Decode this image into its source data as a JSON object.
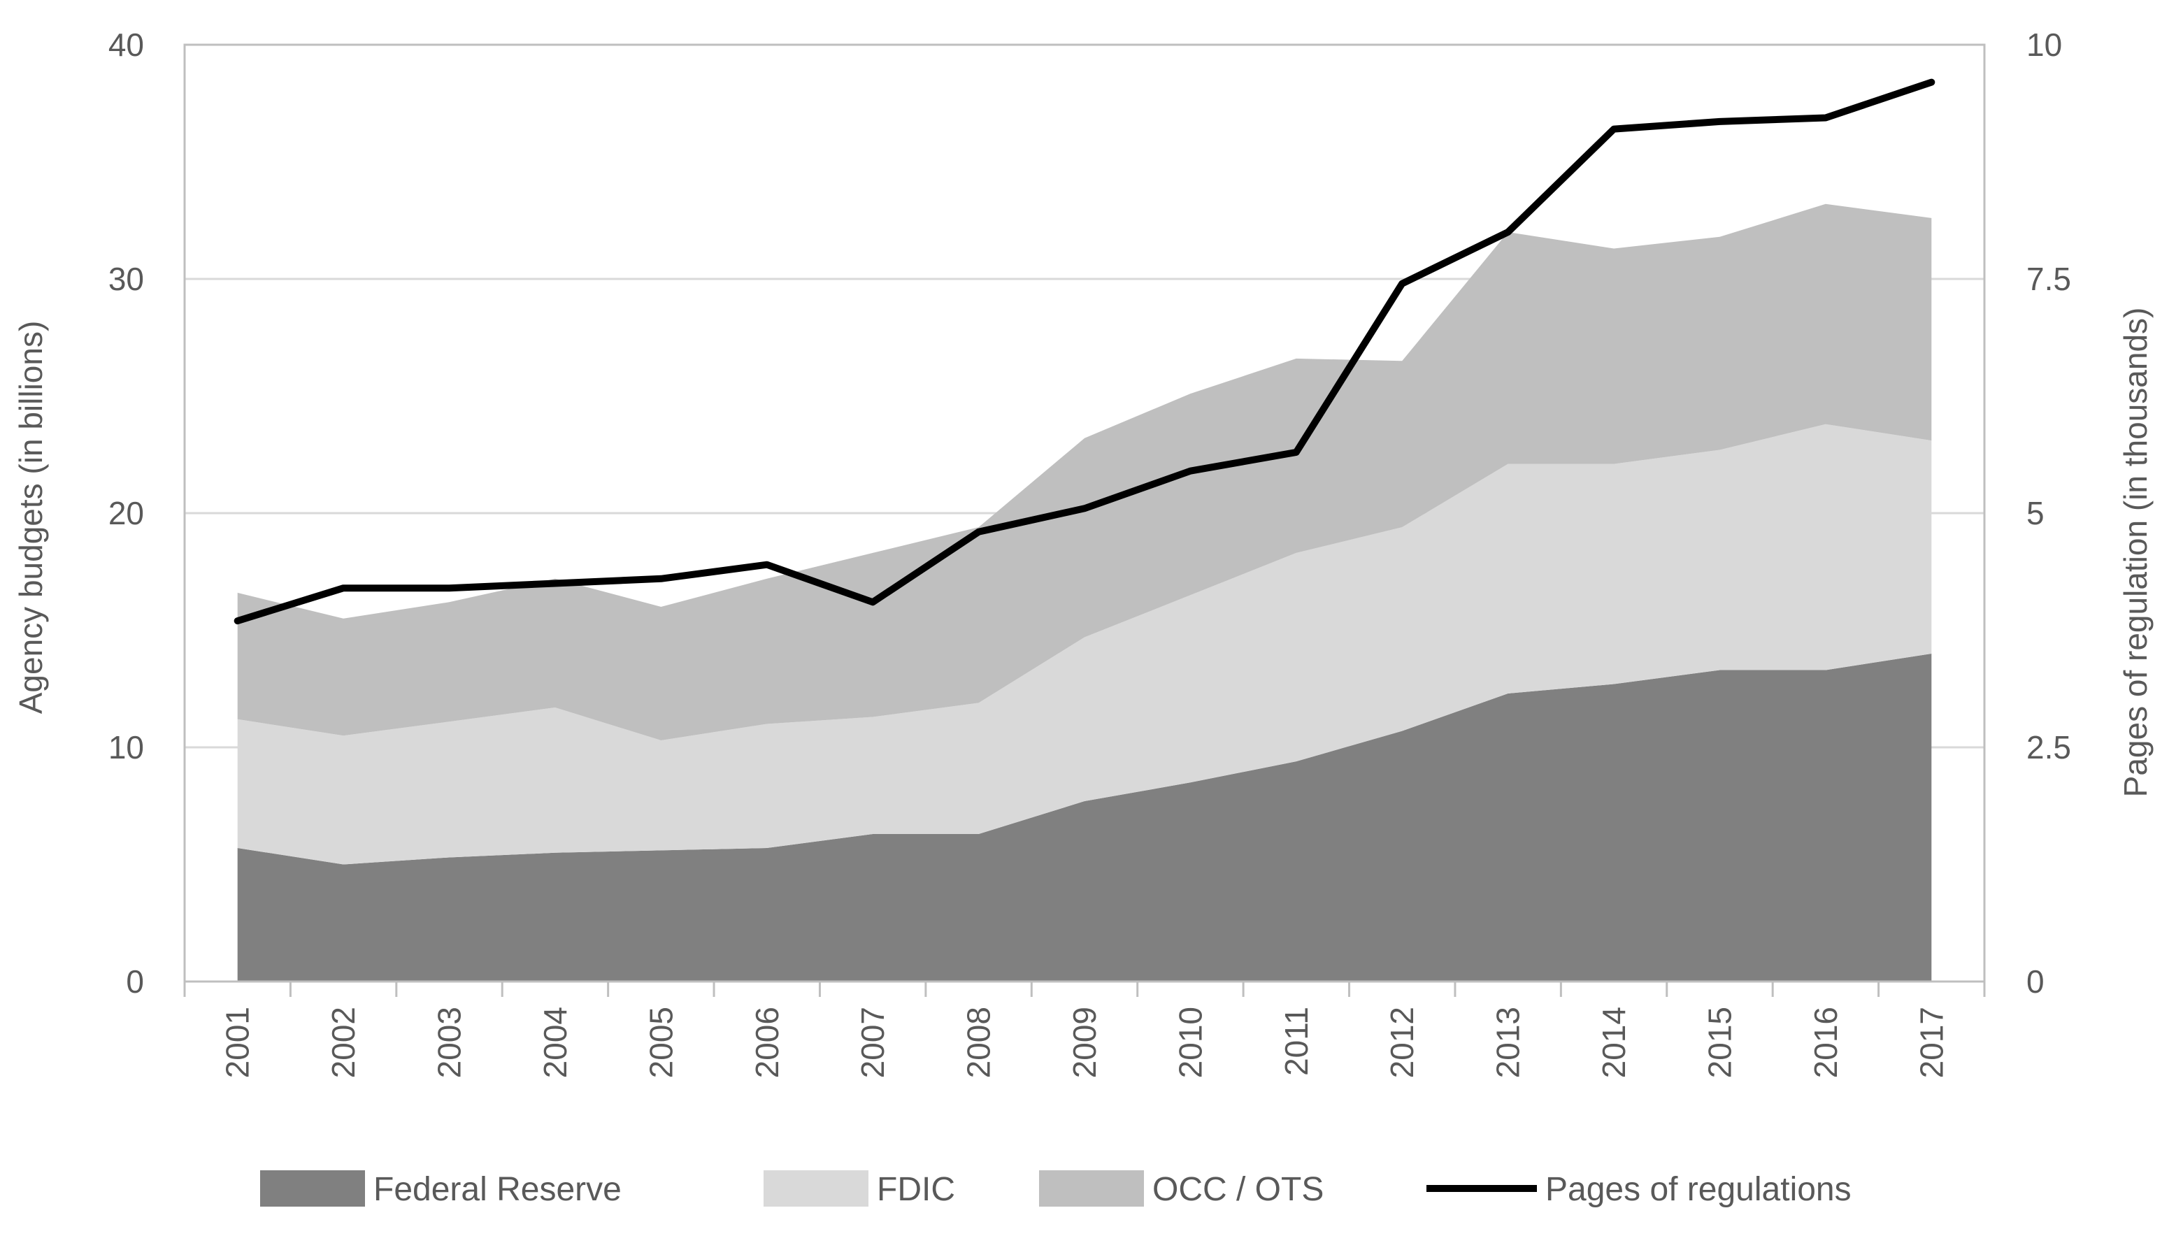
{
  "chart_data": {
    "type": "area",
    "title": "",
    "ylabel": "Agency budgets (in billions)",
    "y2label": "Pages of regulation (in thousands)",
    "ylim": [
      0,
      40
    ],
    "y2lim": [
      0,
      10
    ],
    "yticks": [
      "0",
      "10",
      "20",
      "30",
      "40"
    ],
    "y2ticks": [
      "0",
      "2.5",
      "5",
      "7.5",
      "10"
    ],
    "categories": [
      "2001",
      "2002",
      "2003",
      "2004",
      "2005",
      "2006",
      "2007",
      "2008",
      "2009",
      "2010",
      "2011",
      "2012",
      "2013",
      "2014",
      "2015",
      "2016",
      "2017"
    ],
    "stacked": true,
    "legend_position": "bottom",
    "series": [
      {
        "name": "Federal Reserve",
        "kind": "area",
        "axis": "left",
        "color": "#808080",
        "values": [
          5.7,
          5.0,
          5.3,
          5.5,
          5.6,
          5.7,
          6.3,
          6.3,
          7.7,
          8.5,
          9.4,
          10.7,
          12.3,
          12.7,
          13.3,
          13.3,
          14.0
        ]
      },
      {
        "name": "FDIC",
        "kind": "area",
        "axis": "left",
        "color": "#d9d9d9",
        "values": [
          5.5,
          5.5,
          5.8,
          6.2,
          4.7,
          5.3,
          5.0,
          5.6,
          7.0,
          8.0,
          8.9,
          8.7,
          9.8,
          9.4,
          9.4,
          10.5,
          9.1
        ]
      },
      {
        "name": "OCC / OTS",
        "kind": "area",
        "axis": "left",
        "color": "#bfbfbf",
        "values": [
          5.4,
          5.0,
          5.1,
          5.5,
          5.7,
          6.2,
          7.0,
          7.5,
          8.5,
          8.6,
          8.3,
          7.1,
          9.9,
          9.2,
          9.1,
          9.4,
          9.5
        ]
      },
      {
        "name": "Pages of regulations",
        "kind": "line",
        "axis": "right",
        "color": "#000000",
        "values": [
          3.85,
          4.2,
          4.2,
          4.25,
          4.3,
          4.45,
          4.05,
          4.8,
          5.05,
          5.45,
          5.65,
          7.45,
          8.0,
          9.1,
          9.18,
          9.22,
          9.6
        ]
      }
    ]
  }
}
